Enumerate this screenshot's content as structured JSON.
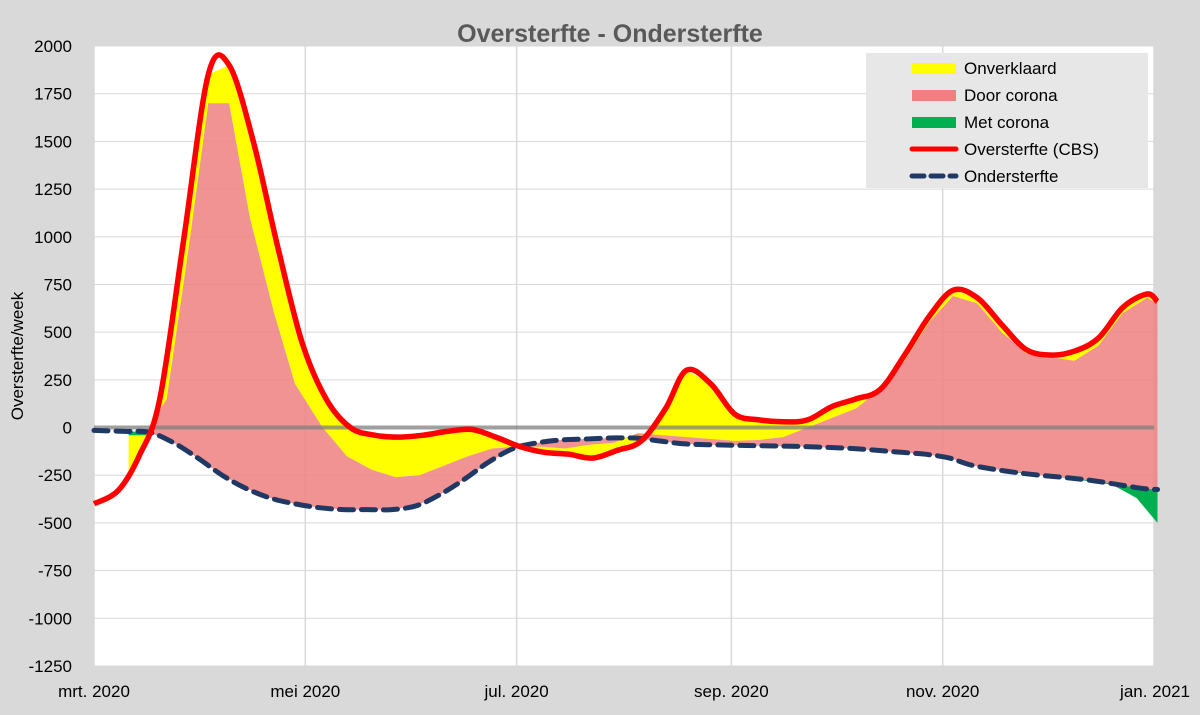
{
  "chart_data": {
    "type": "area",
    "title": "Oversterfte - Ondersterfte",
    "ylabel": "Oversterfte/week",
    "xlabel": "",
    "ylim": [
      -1250,
      2000
    ],
    "yticks": [
      2000,
      1750,
      1500,
      1250,
      1000,
      750,
      500,
      250,
      0,
      -250,
      -500,
      -750,
      -1000,
      -1250
    ],
    "x_range": [
      "2020-03-01",
      "2021-01-01"
    ],
    "xticks": [
      {
        "date": "2020-03-01",
        "label": "mrt. 2020"
      },
      {
        "date": "2020-05-01",
        "label": "mei 2020"
      },
      {
        "date": "2020-07-01",
        "label": "jul. 2020"
      },
      {
        "date": "2020-09-01",
        "label": "sep. 2020"
      },
      {
        "date": "2020-11-01",
        "label": "nov. 2020"
      },
      {
        "date": "2021-01-01",
        "label": "jan. 2021"
      }
    ],
    "grid": true,
    "legend_position": "top-right",
    "series": [
      {
        "name": "Onverklaard",
        "kind": "area",
        "color": "#ffff00",
        "fill_between": [
          "Door corona",
          "Oversterfte (CBS)"
        ]
      },
      {
        "name": "Door corona",
        "kind": "area",
        "color": "#f08080",
        "fill_between": [
          "Ondersterfte",
          "self"
        ],
        "points": [
          {
            "x": "2020-03-11",
            "y": -25
          },
          {
            "x": "2020-03-16",
            "y": -30
          },
          {
            "x": "2020-03-22",
            "y": 150
          },
          {
            "x": "2020-03-28",
            "y": 900
          },
          {
            "x": "2020-04-03",
            "y": 1700
          },
          {
            "x": "2020-04-09",
            "y": 1700
          },
          {
            "x": "2020-04-15",
            "y": 1100
          },
          {
            "x": "2020-04-22",
            "y": 600
          },
          {
            "x": "2020-04-28",
            "y": 230
          },
          {
            "x": "2020-05-06",
            "y": 0
          },
          {
            "x": "2020-05-13",
            "y": -150
          },
          {
            "x": "2020-05-20",
            "y": -220
          },
          {
            "x": "2020-05-27",
            "y": -260
          },
          {
            "x": "2020-06-03",
            "y": -250
          },
          {
            "x": "2020-06-10",
            "y": -200
          },
          {
            "x": "2020-06-17",
            "y": -150
          },
          {
            "x": "2020-06-24",
            "y": -110
          },
          {
            "x": "2020-07-01",
            "y": -100
          },
          {
            "x": "2020-07-08",
            "y": -100
          },
          {
            "x": "2020-07-15",
            "y": -110
          },
          {
            "x": "2020-07-22",
            "y": -90
          },
          {
            "x": "2020-07-29",
            "y": -80
          },
          {
            "x": "2020-08-05",
            "y": -30
          },
          {
            "x": "2020-08-12",
            "y": -40
          },
          {
            "x": "2020-08-19",
            "y": -50
          },
          {
            "x": "2020-08-26",
            "y": -60
          },
          {
            "x": "2020-09-02",
            "y": -70
          },
          {
            "x": "2020-09-09",
            "y": -65
          },
          {
            "x": "2020-09-16",
            "y": -50
          },
          {
            "x": "2020-09-23",
            "y": 0
          },
          {
            "x": "2020-09-30",
            "y": 50
          },
          {
            "x": "2020-10-07",
            "y": 100
          },
          {
            "x": "2020-10-14",
            "y": 200
          },
          {
            "x": "2020-10-21",
            "y": 350
          },
          {
            "x": "2020-10-28",
            "y": 550
          },
          {
            "x": "2020-11-04",
            "y": 690
          },
          {
            "x": "2020-11-11",
            "y": 650
          },
          {
            "x": "2020-11-18",
            "y": 500
          },
          {
            "x": "2020-11-25",
            "y": 390
          },
          {
            "x": "2020-12-02",
            "y": 370
          },
          {
            "x": "2020-12-09",
            "y": 350
          },
          {
            "x": "2020-12-16",
            "y": 430
          },
          {
            "x": "2020-12-23",
            "y": 600
          },
          {
            "x": "2020-12-30",
            "y": 680
          },
          {
            "x": "2021-01-02",
            "y": 650
          }
        ]
      },
      {
        "name": "Met corona",
        "kind": "area",
        "color": "#00b050",
        "fill_between": [
          "self",
          "Ondersterfte"
        ],
        "points": [
          {
            "x": "2020-11-11",
            "y": -205
          },
          {
            "x": "2020-11-25",
            "y": -240
          },
          {
            "x": "2020-12-09",
            "y": -270
          },
          {
            "x": "2020-12-20",
            "y": -300
          },
          {
            "x": "2020-12-27",
            "y": -370
          },
          {
            "x": "2021-01-02",
            "y": -500
          }
        ]
      },
      {
        "name": "Oversterfte (CBS)",
        "kind": "line",
        "color": "#ff0000",
        "points": [
          {
            "x": "2020-03-01",
            "y": -400
          },
          {
            "x": "2020-03-08",
            "y": -330
          },
          {
            "x": "2020-03-14",
            "y": -150
          },
          {
            "x": "2020-03-20",
            "y": 150
          },
          {
            "x": "2020-03-27",
            "y": 1000
          },
          {
            "x": "2020-04-03",
            "y": 1850
          },
          {
            "x": "2020-04-09",
            "y": 1900
          },
          {
            "x": "2020-04-16",
            "y": 1500
          },
          {
            "x": "2020-04-23",
            "y": 950
          },
          {
            "x": "2020-04-30",
            "y": 450
          },
          {
            "x": "2020-05-07",
            "y": 150
          },
          {
            "x": "2020-05-14",
            "y": 0
          },
          {
            "x": "2020-05-21",
            "y": -40
          },
          {
            "x": "2020-05-28",
            "y": -50
          },
          {
            "x": "2020-06-04",
            "y": -40
          },
          {
            "x": "2020-06-11",
            "y": -20
          },
          {
            "x": "2020-06-18",
            "y": -10
          },
          {
            "x": "2020-06-25",
            "y": -50
          },
          {
            "x": "2020-07-02",
            "y": -100
          },
          {
            "x": "2020-07-09",
            "y": -130
          },
          {
            "x": "2020-07-16",
            "y": -140
          },
          {
            "x": "2020-07-23",
            "y": -160
          },
          {
            "x": "2020-07-30",
            "y": -120
          },
          {
            "x": "2020-08-06",
            "y": -70
          },
          {
            "x": "2020-08-13",
            "y": 100
          },
          {
            "x": "2020-08-19",
            "y": 300
          },
          {
            "x": "2020-08-26",
            "y": 230
          },
          {
            "x": "2020-09-02",
            "y": 70
          },
          {
            "x": "2020-09-09",
            "y": 40
          },
          {
            "x": "2020-09-16",
            "y": 30
          },
          {
            "x": "2020-09-23",
            "y": 40
          },
          {
            "x": "2020-09-30",
            "y": 110
          },
          {
            "x": "2020-10-07",
            "y": 150
          },
          {
            "x": "2020-10-14",
            "y": 200
          },
          {
            "x": "2020-10-21",
            "y": 380
          },
          {
            "x": "2020-10-28",
            "y": 580
          },
          {
            "x": "2020-11-04",
            "y": 720
          },
          {
            "x": "2020-11-11",
            "y": 680
          },
          {
            "x": "2020-11-18",
            "y": 540
          },
          {
            "x": "2020-11-25",
            "y": 410
          },
          {
            "x": "2020-12-02",
            "y": 380
          },
          {
            "x": "2020-12-09",
            "y": 400
          },
          {
            "x": "2020-12-16",
            "y": 470
          },
          {
            "x": "2020-12-23",
            "y": 630
          },
          {
            "x": "2020-12-30",
            "y": 700
          },
          {
            "x": "2021-01-02",
            "y": 660
          }
        ]
      },
      {
        "name": "Ondersterfte",
        "kind": "dashed-line",
        "color": "#1f3864",
        "points": [
          {
            "x": "2020-03-01",
            "y": -15
          },
          {
            "x": "2020-03-10",
            "y": -20
          },
          {
            "x": "2020-03-17",
            "y": -25
          },
          {
            "x": "2020-03-24",
            "y": -80
          },
          {
            "x": "2020-03-31",
            "y": -160
          },
          {
            "x": "2020-04-07",
            "y": -250
          },
          {
            "x": "2020-04-14",
            "y": -320
          },
          {
            "x": "2020-04-21",
            "y": -370
          },
          {
            "x": "2020-04-28",
            "y": -400
          },
          {
            "x": "2020-05-05",
            "y": -420
          },
          {
            "x": "2020-05-12",
            "y": -430
          },
          {
            "x": "2020-05-19",
            "y": -430
          },
          {
            "x": "2020-05-26",
            "y": -430
          },
          {
            "x": "2020-06-02",
            "y": -410
          },
          {
            "x": "2020-06-09",
            "y": -350
          },
          {
            "x": "2020-06-16",
            "y": -270
          },
          {
            "x": "2020-06-23",
            "y": -180
          },
          {
            "x": "2020-06-30",
            "y": -110
          },
          {
            "x": "2020-07-07",
            "y": -80
          },
          {
            "x": "2020-07-14",
            "y": -65
          },
          {
            "x": "2020-07-21",
            "y": -60
          },
          {
            "x": "2020-07-28",
            "y": -55
          },
          {
            "x": "2020-08-04",
            "y": -55
          },
          {
            "x": "2020-08-11",
            "y": -70
          },
          {
            "x": "2020-08-18",
            "y": -85
          },
          {
            "x": "2020-08-25",
            "y": -90
          },
          {
            "x": "2020-09-08",
            "y": -95
          },
          {
            "x": "2020-09-22",
            "y": -100
          },
          {
            "x": "2020-10-06",
            "y": -110
          },
          {
            "x": "2020-10-20",
            "y": -130
          },
          {
            "x": "2020-10-27",
            "y": -140
          },
          {
            "x": "2020-11-03",
            "y": -160
          },
          {
            "x": "2020-11-10",
            "y": -200
          },
          {
            "x": "2020-11-24",
            "y": -240
          },
          {
            "x": "2020-12-08",
            "y": -265
          },
          {
            "x": "2020-12-15",
            "y": -280
          },
          {
            "x": "2020-12-22",
            "y": -300
          },
          {
            "x": "2020-12-29",
            "y": -320
          },
          {
            "x": "2021-01-02",
            "y": -325
          }
        ]
      }
    ]
  }
}
